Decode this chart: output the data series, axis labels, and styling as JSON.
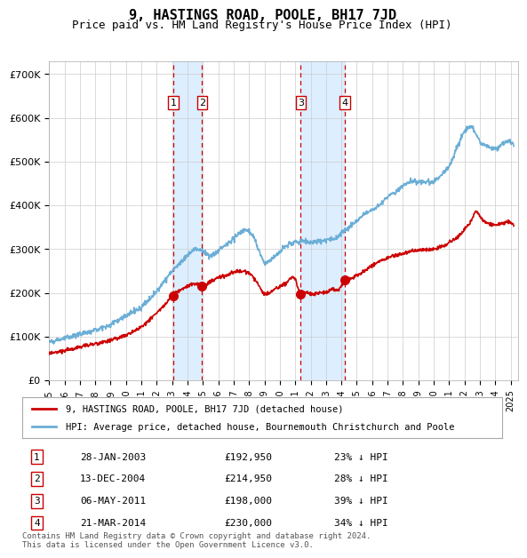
{
  "title": "9, HASTINGS ROAD, POOLE, BH17 7JD",
  "subtitle": "Price paid vs. HM Land Registry's House Price Index (HPI)",
  "footer": "Contains HM Land Registry data © Crown copyright and database right 2024.\nThis data is licensed under the Open Government Licence v3.0.",
  "legend_house": "9, HASTINGS ROAD, POOLE, BH17 7JD (detached house)",
  "legend_hpi": "HPI: Average price, detached house, Bournemouth Christchurch and Poole",
  "transactions": [
    {
      "num": 1,
      "date": "28-JAN-2003",
      "price": 192950,
      "pct": "23%",
      "year": 2003.08
    },
    {
      "num": 2,
      "date": "13-DEC-2004",
      "price": 214950,
      "pct": "28%",
      "year": 2004.95
    },
    {
      "num": 3,
      "date": "06-MAY-2011",
      "price": 198000,
      "pct": "39%",
      "year": 2011.35
    },
    {
      "num": 4,
      "date": "21-MAR-2014",
      "price": 230000,
      "pct": "34%",
      "year": 2014.21
    }
  ],
  "hpi_color": "#6baed6",
  "house_color": "#cc0000",
  "dashed_color": "#cc0000",
  "shade_color": "#ddeeff",
  "marker_color": "#cc0000",
  "background_color": "#ffffff",
  "grid_color": "#cccccc",
  "ylim": [
    0,
    730000
  ],
  "xlim_start": 1995.0,
  "xlim_end": 2025.5
}
